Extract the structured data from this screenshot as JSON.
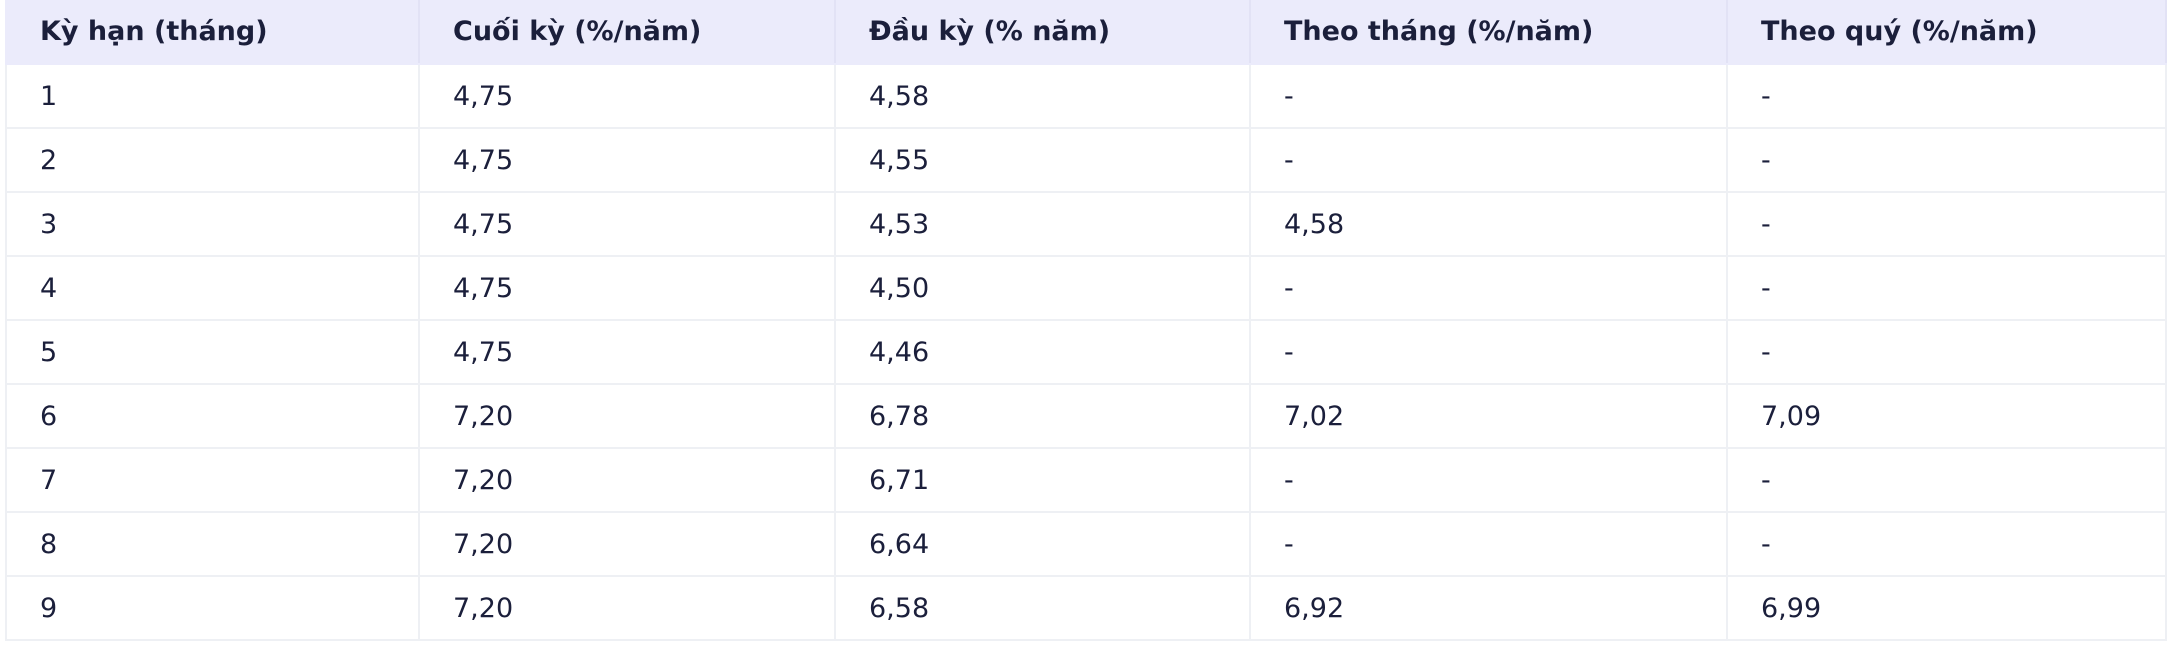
{
  "table": {
    "header": [
      "Kỳ hạn (tháng)",
      "Cuối kỳ (%/năm)",
      "Đầu kỳ (% năm)",
      "Theo tháng (%/năm)",
      "Theo quý (%/năm)"
    ],
    "rows": [
      [
        "1",
        "4,75",
        "4,58",
        "-",
        "-"
      ],
      [
        "2",
        "4,75",
        "4,55",
        "-",
        "-"
      ],
      [
        "3",
        "4,75",
        "4,53",
        "4,58",
        "-"
      ],
      [
        "4",
        "4,75",
        "4,50",
        "-",
        "-"
      ],
      [
        "5",
        "4,75",
        "4,46",
        "-",
        "-"
      ],
      [
        "6",
        "7,20",
        "6,78",
        "7,02",
        "7,09"
      ],
      [
        "7",
        "7,20",
        "6,71",
        "-",
        "-"
      ],
      [
        "8",
        "7,20",
        "6,64",
        "-",
        "-"
      ],
      [
        "9",
        "7,20",
        "6,58",
        "6,92",
        "6,99"
      ]
    ]
  }
}
